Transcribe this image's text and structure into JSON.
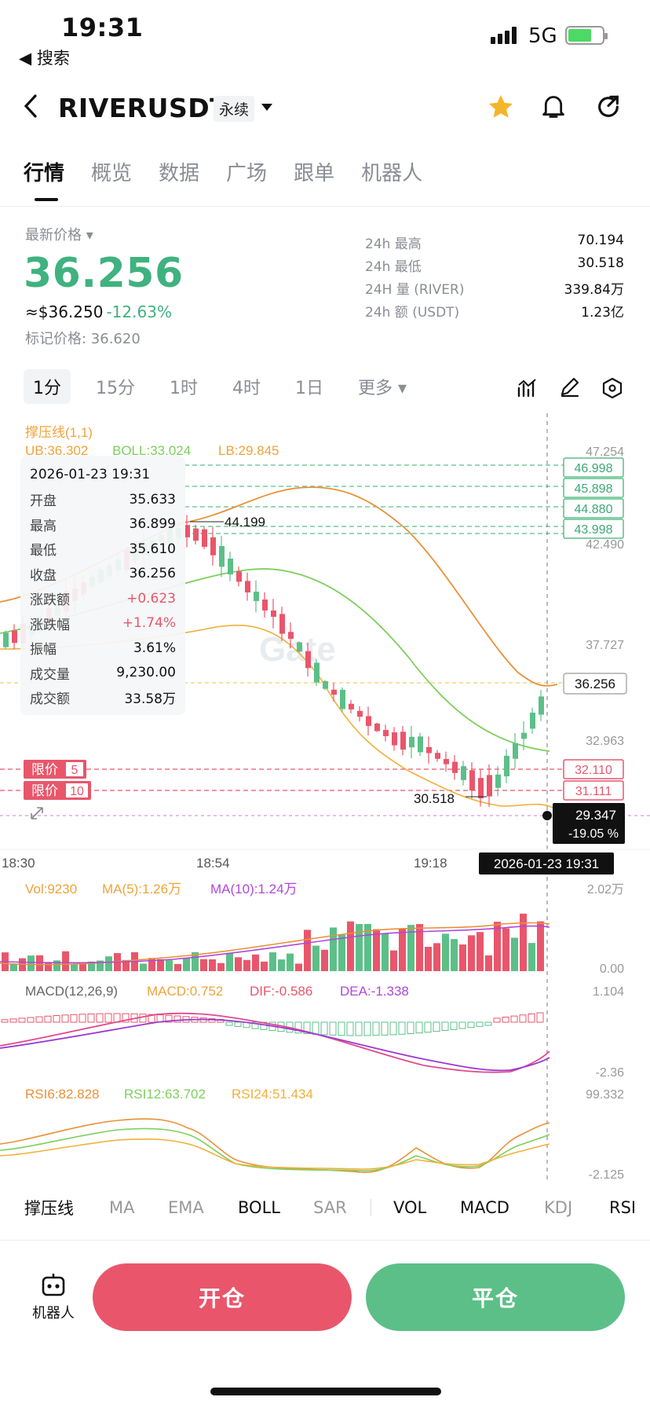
{
  "status": {
    "time": "19:31",
    "back_label": "◀ 搜索",
    "network": "5G"
  },
  "header": {
    "symbol": "RIVERUSDT",
    "perp_tag": "永续"
  },
  "tabs": [
    "行情",
    "概览",
    "数据",
    "广场",
    "跟单",
    "机器人"
  ],
  "price": {
    "last_label": "最新价格 ▾",
    "last": "36.256",
    "fiat": "≈$36.250",
    "change": "-12.63%",
    "mark": "标记价格: 36.620"
  },
  "stats": [
    {
      "k": "24h  最高",
      "v": "70.194"
    },
    {
      "k": "24h  最低",
      "v": "30.518"
    },
    {
      "k": "24H  量 (RIVER)",
      "v": "339.84万"
    },
    {
      "k": "24h  额 (USDT)",
      "v": "1.23亿"
    }
  ],
  "intervals": [
    "1分",
    "15分",
    "1时",
    "4时",
    "1日",
    "更多 ▾"
  ],
  "chart": {
    "indicator_title": "撑压线(1,1)",
    "boll_ub": "UB:36.302",
    "boll_mid": "BOLL:33.024",
    "boll_lb": "LB:29.845",
    "y_labels": [
      "47.254",
      "42.490",
      "37.727",
      "32.963"
    ],
    "levels_green": [
      "46.998",
      "45.898",
      "44.880",
      "43.998"
    ],
    "current_label": "36.256",
    "levels_red": [
      "32.110",
      "31.111"
    ],
    "limit_orders": [
      {
        "label": "限价",
        "qty": "5"
      },
      {
        "label": "限价",
        "qty": "10"
      }
    ],
    "high_marker": "44.199",
    "low_marker": "30.518",
    "crosshair_price": "29.347",
    "crosshair_pct": "-19.05 %",
    "crosshair_time": "2026-01-23 19:31",
    "x_labels": [
      "18:30",
      "18:54",
      "19:18"
    ],
    "watermark": "Gate",
    "vol": {
      "vol": "Vol:9230",
      "ma5": "MA(5):1.26万",
      "ma10": "MA(10):1.24万",
      "y_top": "2.02万",
      "y_bot": "0.00"
    },
    "macd": {
      "title": "MACD(12,26,9)",
      "macd": "MACD:0.752",
      "dif": "DIF:-0.586",
      "dea": "DEA:-1.338",
      "y_top": "1.104",
      "y_bot": "-2.36"
    },
    "rsi": {
      "r6": "RSI6:82.828",
      "r12": "RSI12:63.702",
      "r24": "RSI24:51.434",
      "y_top": "99.332",
      "y_bot": "-2.125"
    }
  },
  "tooltip": {
    "date": "2026-01-23 19:31",
    "rows": [
      {
        "k": "开盘",
        "v": "35.633"
      },
      {
        "k": "最高",
        "v": "36.899"
      },
      {
        "k": "最低",
        "v": "35.610"
      },
      {
        "k": "收盘",
        "v": "36.256"
      },
      {
        "k": "涨跌额",
        "v": "+0.623"
      },
      {
        "k": "涨跌幅",
        "v": "+1.74%"
      },
      {
        "k": "振幅",
        "v": "3.61%"
      },
      {
        "k": "成交量",
        "v": "9,230.00"
      },
      {
        "k": "成交额",
        "v": "33.58万"
      }
    ]
  },
  "bottom_indicators": [
    "撑压线",
    "MA",
    "EMA",
    "BOLL",
    "SAR",
    "VOL",
    "MACD",
    "KDJ",
    "RSI"
  ],
  "actions": {
    "robot": "机器人",
    "open": "开仓",
    "close": "平仓"
  },
  "colors": {
    "up": "#5cbf88",
    "down": "#e9566b",
    "price_green": "#3fb27f",
    "star": "#f5b52a"
  }
}
